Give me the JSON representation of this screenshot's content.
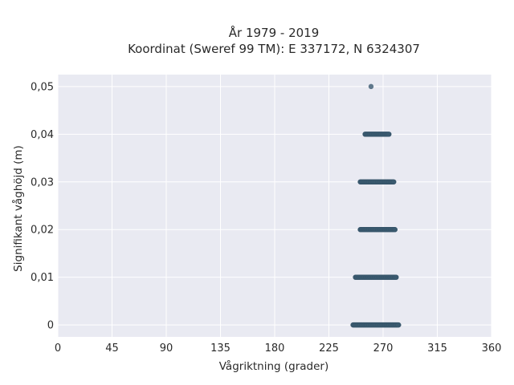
{
  "chart_data": {
    "type": "scatter",
    "title": "År 1979 - 2019",
    "subtitle": "Koordinat (Sweref 99 TM): E 337172, N 6324307",
    "xlabel": "Vågriktning (grader)",
    "ylabel": "Signifikant våghöjd (m)",
    "xlim": [
      0,
      360
    ],
    "ylim": [
      -0.0025,
      0.0525
    ],
    "x_ticks": [
      0,
      45,
      90,
      135,
      180,
      225,
      270,
      315,
      360
    ],
    "x_tick_labels": [
      "0",
      "45",
      "90",
      "135",
      "180",
      "225",
      "270",
      "315",
      "360"
    ],
    "y_ticks": [
      0,
      0.01,
      0.02,
      0.03,
      0.04,
      0.05
    ],
    "y_tick_labels": [
      "0",
      "0,01",
      "0,02",
      "0,03",
      "0,04",
      "0,05"
    ],
    "grid": true,
    "background": "#e9eaf2",
    "marker_color": "#3b5a70",
    "points_by_height": [
      {
        "y": 0.0,
        "x_min": 245,
        "x_max": 283
      },
      {
        "y": 0.01,
        "x_min": 247,
        "x_max": 281
      },
      {
        "y": 0.02,
        "x_min": 251,
        "x_max": 280
      },
      {
        "y": 0.03,
        "x_min": 251,
        "x_max": 279
      },
      {
        "y": 0.04,
        "x_min": 255,
        "x_max": 275
      },
      {
        "y": 0.05,
        "x_min": 260,
        "x_max": 260
      }
    ]
  }
}
